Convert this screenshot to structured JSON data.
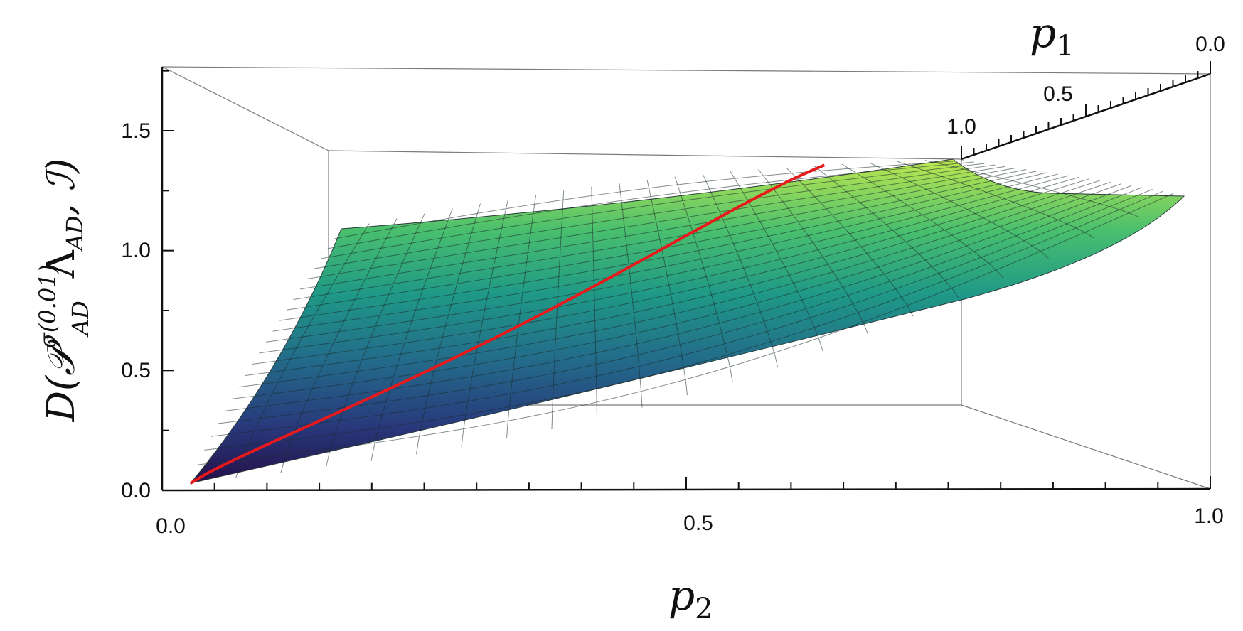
{
  "chart_data": {
    "type": "surface3d",
    "title": "",
    "zlabel": {
      "main": "D(",
      "script": "𝒫",
      "superscript": "σ(0.01)",
      "subscript": "AD",
      "lambda": "Λ",
      "lambda_sub": "AD",
      "tail": ", ℐ)"
    },
    "x_axis": {
      "var": "p",
      "sub": "2",
      "ticks": [
        "0.0",
        "0.5",
        "1.0"
      ],
      "range": [
        0,
        1
      ]
    },
    "y_axis": {
      "var": "p",
      "sub": "1",
      "ticks": [
        "1.0",
        "0.5",
        "0.0"
      ],
      "range": [
        0,
        1
      ]
    },
    "z_axis": {
      "ticks": [
        "0.0",
        "0.5",
        "1.0",
        "1.5"
      ],
      "range": [
        0,
        1.75
      ]
    },
    "surface": {
      "corner_values": [
        {
          "p1": 0.0,
          "p2": 0.0,
          "z": 0.03
        },
        {
          "p1": 1.0,
          "p2": 0.0,
          "z": 1.1
        },
        {
          "p1": 1.0,
          "p2": 1.0,
          "z": 1.38
        },
        {
          "p1": 0.0,
          "p2": 1.0,
          "z": 1.22
        }
      ],
      "colormap": "viridis",
      "mesh": true
    },
    "curve": {
      "color": "#e8191b",
      "from": {
        "p1": 0.0,
        "p2": 0.0,
        "z": 0.03
      },
      "to": {
        "p1": 1.0,
        "p2": 1.0,
        "z": 1.38
      }
    }
  }
}
